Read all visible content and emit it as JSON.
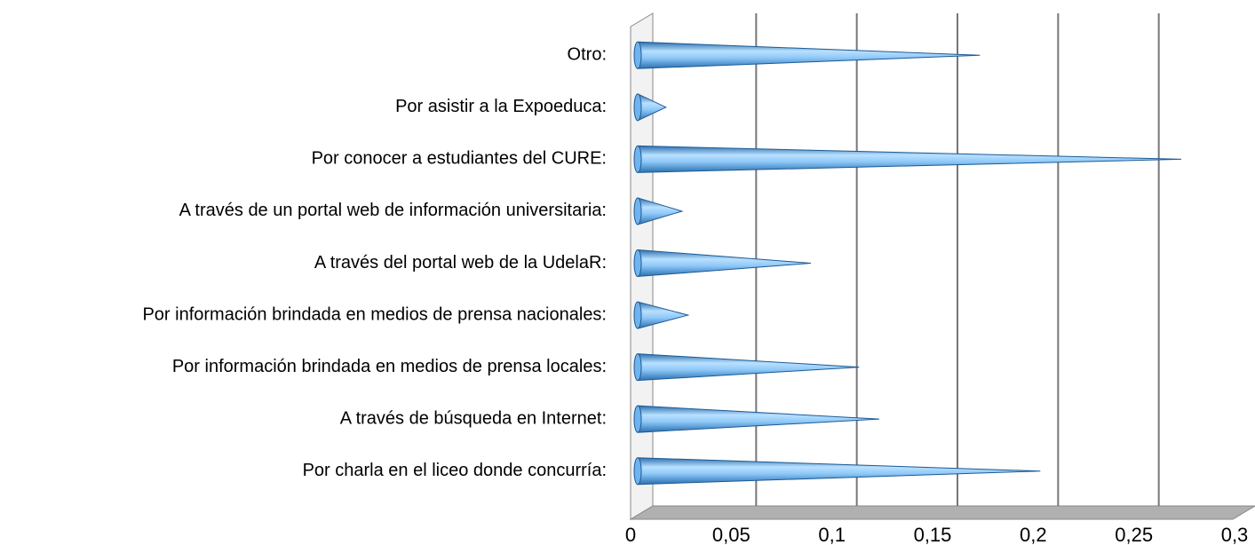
{
  "chart_data": {
    "type": "bar",
    "orientation": "horizontal",
    "style": "3d-cone",
    "categories": [
      "Otro:",
      "Por asistir a la Expoeduca:",
      "Por conocer a estudiantes del CURE:",
      "A través de un portal web de información universitaria:",
      "A través del portal web de la UdelaR:",
      "Por información brindada en medios de prensa nacionales:",
      "Por información brindada en medios de prensa locales:",
      "A través de búsqueda en Internet:",
      "Por charla en el liceo donde concurría:"
    ],
    "values": [
      0.17,
      0.014,
      0.27,
      0.022,
      0.086,
      0.025,
      0.11,
      0.12,
      0.2
    ],
    "color": "#8ec8f8",
    "xlim": [
      0,
      0.3
    ],
    "xticks": [
      0,
      {
        "value": 0.05,
        "label": "0,05"
      },
      {
        "value": 0.1,
        "label": "0,1"
      },
      {
        "value": 0.15,
        "label": "0,15"
      },
      {
        "value": 0.2,
        "label": "0,2"
      },
      {
        "value": 0.25,
        "label": "0,25"
      },
      {
        "value": 0.3,
        "label": "0,3"
      }
    ],
    "grid": true
  }
}
